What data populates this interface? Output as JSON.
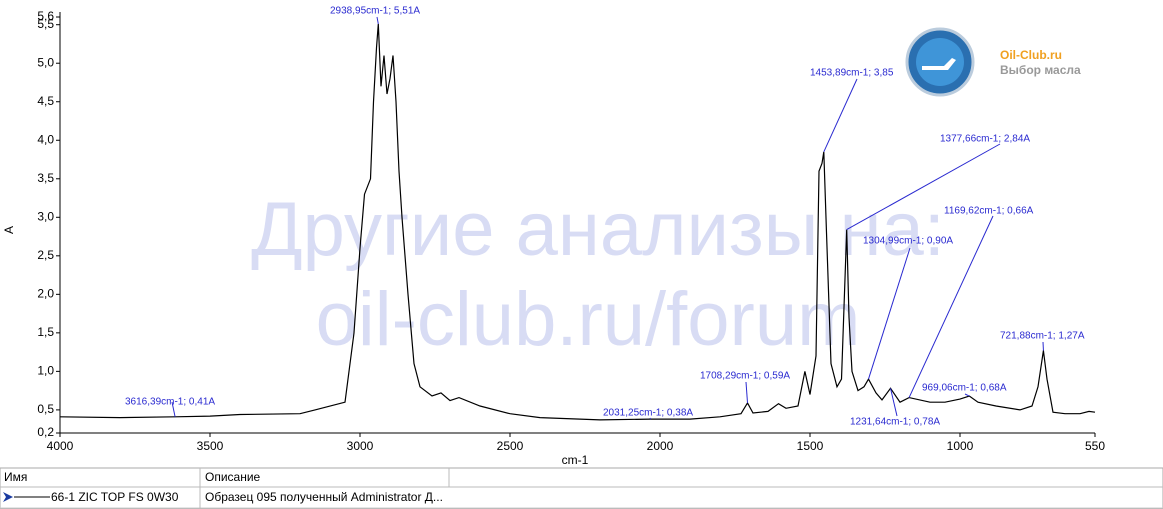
{
  "chart_data": {
    "type": "line",
    "xlabel": "cm-1",
    "ylabel": "A",
    "xlim": [
      4000,
      550
    ],
    "ylim": [
      0.2,
      5.6
    ],
    "xticks": [
      4000,
      3500,
      3000,
      2500,
      2000,
      1500,
      1000,
      550
    ],
    "yticks": [
      {
        "value": 0.2,
        "label": "0,2"
      },
      {
        "value": 0.5,
        "label": "0,5"
      },
      {
        "value": 1.0,
        "label": "1,0"
      },
      {
        "value": 1.5,
        "label": "1,5"
      },
      {
        "value": 2.0,
        "label": "2,0"
      },
      {
        "value": 2.5,
        "label": "2,5"
      },
      {
        "value": 3.0,
        "label": "3,0"
      },
      {
        "value": 3.5,
        "label": "3,5"
      },
      {
        "value": 4.0,
        "label": "4,0"
      },
      {
        "value": 4.5,
        "label": "4,5"
      },
      {
        "value": 5.0,
        "label": "5,0"
      },
      {
        "value": 5.5,
        "label": "5,5"
      },
      {
        "value": 5.6,
        "label": "5,6"
      }
    ],
    "x": [
      4000,
      3800,
      3616.39,
      3500,
      3400,
      3200,
      3150,
      3050,
      3020,
      3000,
      2985,
      2965,
      2955,
      2945,
      2938.95,
      2930,
      2920,
      2910,
      2900,
      2890,
      2880,
      2870,
      2860,
      2840,
      2820,
      2800,
      2760,
      2730,
      2700,
      2670,
      2600,
      2500,
      2400,
      2200,
      2031.25,
      1900,
      1800,
      1730,
      1708.29,
      1690,
      1640,
      1605,
      1580,
      1540,
      1517,
      1500,
      1480,
      1470,
      1460,
      1453.89,
      1445,
      1430,
      1410,
      1395,
      1377.66,
      1370,
      1360,
      1340,
      1320,
      1304.99,
      1280,
      1260,
      1231.64,
      1200,
      1169.62,
      1100,
      1050,
      1000,
      969.06,
      940,
      880,
      800,
      760,
      740,
      721.88,
      710,
      690,
      650,
      600,
      570,
      550
    ],
    "series": [
      {
        "name": "66-1 ZIC TOP FS 0W30",
        "color": "#000000",
        "values": [
          0.41,
          0.4,
          0.41,
          0.42,
          0.44,
          0.45,
          0.5,
          0.6,
          1.5,
          2.6,
          3.3,
          3.5,
          4.5,
          5.2,
          5.51,
          4.7,
          5.1,
          4.6,
          4.8,
          5.1,
          4.5,
          3.6,
          3.0,
          2.0,
          1.1,
          0.8,
          0.68,
          0.72,
          0.62,
          0.66,
          0.55,
          0.45,
          0.4,
          0.37,
          0.38,
          0.38,
          0.41,
          0.45,
          0.59,
          0.46,
          0.48,
          0.58,
          0.52,
          0.55,
          1.0,
          0.7,
          1.2,
          3.6,
          3.7,
          3.85,
          2.8,
          1.1,
          0.8,
          0.9,
          2.84,
          1.7,
          1.0,
          0.75,
          0.8,
          0.9,
          0.72,
          0.63,
          0.78,
          0.6,
          0.66,
          0.6,
          0.6,
          0.64,
          0.68,
          0.6,
          0.55,
          0.5,
          0.55,
          0.8,
          1.27,
          0.9,
          0.47,
          0.45,
          0.45,
          0.48,
          0.47
        ]
      }
    ],
    "annotations": [
      {
        "text": "3616,39cm-1; 0,41A",
        "x": 3616.39,
        "y": 0.41
      },
      {
        "text": "2938,95cm-1; 5,51A",
        "x": 2938.95,
        "y": 5.51
      },
      {
        "text": "2031,25cm-1; 0,38A",
        "x": 2031.25,
        "y": 0.38
      },
      {
        "text": "1708,29cm-1; 0,59A",
        "x": 1708.29,
        "y": 0.59
      },
      {
        "text": "1453,89cm-1; 3,85",
        "x": 1453.89,
        "y": 3.85
      },
      {
        "text": "1377,66cm-1; 2,84A",
        "x": 1377.66,
        "y": 2.84
      },
      {
        "text": "1304,99cm-1; 0,90A",
        "x": 1304.99,
        "y": 0.9
      },
      {
        "text": "1231,64cm-1; 0,78A",
        "x": 1231.64,
        "y": 0.78
      },
      {
        "text": "1169,62cm-1; 0,66A",
        "x": 1169.62,
        "y": 0.66
      },
      {
        "text": "969,06cm-1; 0,68A",
        "x": 969.06,
        "y": 0.68
      },
      {
        "text": "721,88cm-1; 1,27A",
        "x": 721.88,
        "y": 1.27
      }
    ]
  },
  "watermark": [
    "Другие анализы на:",
    "oil-club.ru/forum"
  ],
  "logo": {
    "title": "Oil-Club.ru",
    "subtitle": "Выбор масла"
  },
  "table": {
    "headers": [
      "Имя",
      "Описание"
    ],
    "rows": [
      [
        "66-1 ZIC TOP FS 0W30",
        "Образец 095 полученный Administrator Д..."
      ]
    ]
  }
}
